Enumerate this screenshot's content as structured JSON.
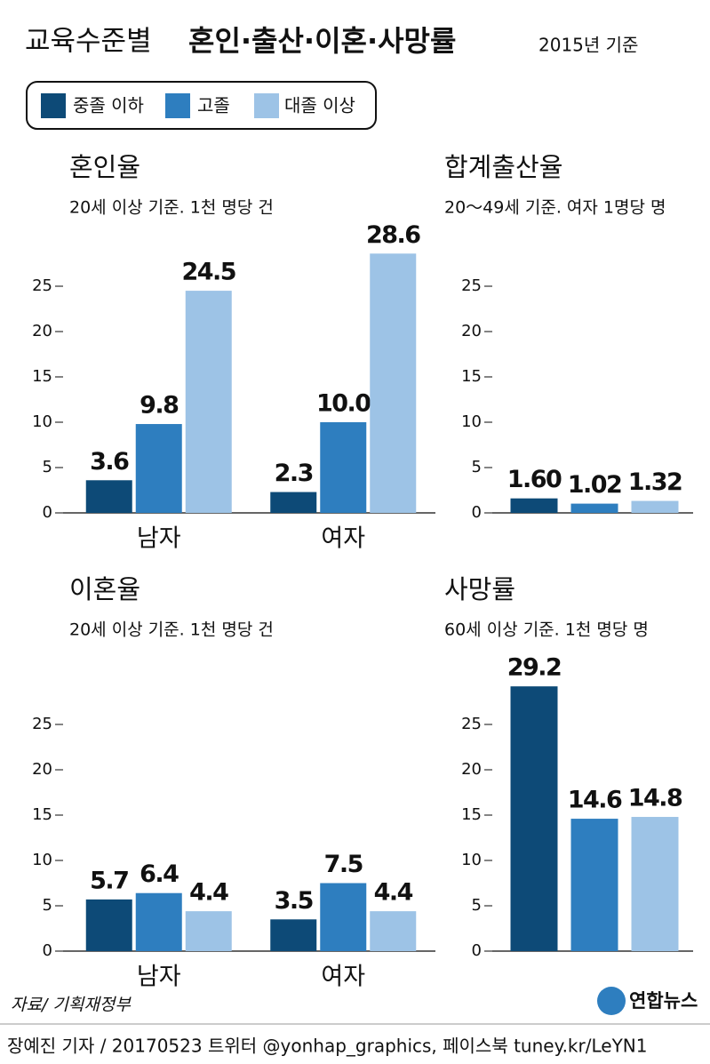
{
  "header": {
    "title_light": "교육수준별",
    "title_bold": "혼인·출산·이혼·사망률",
    "basis": "2015년 기준"
  },
  "chart_data": [
    {
      "type": "bar",
      "title": "혼인율",
      "subtitle": "20세 이상 기준. 1천 명당 건",
      "categories": [
        "남자",
        "여자"
      ],
      "series": [
        {
          "name": "중졸 이하",
          "color": "#0d4a77",
          "values": [
            3.6,
            2.3
          ]
        },
        {
          "name": "고졸",
          "color": "#2e7ebf",
          "values": [
            9.8,
            10.0
          ],
          "value_labels": [
            "9.8",
            "10.0"
          ]
        },
        {
          "name": "대졸 이상",
          "color": "#9dc3e6",
          "values": [
            24.5,
            28.6
          ]
        }
      ],
      "ylim": [
        0,
        30
      ],
      "yticks": [
        0,
        5,
        10,
        15,
        20,
        25
      ]
    },
    {
      "type": "bar",
      "title": "합계출산율",
      "subtitle": "20～49세 기준. 여자 1명당 명",
      "categories": [
        null
      ],
      "series": [
        {
          "name": "중졸 이하",
          "color": "#0d4a77",
          "values": [
            1.6
          ],
          "value_labels": [
            "1.60"
          ]
        },
        {
          "name": "고졸",
          "color": "#2e7ebf",
          "values": [
            1.02
          ]
        },
        {
          "name": "대졸 이상",
          "color": "#9dc3e6",
          "values": [
            1.32
          ]
        }
      ],
      "ylim": [
        0,
        30
      ],
      "yticks": [
        0,
        5,
        10,
        15,
        20,
        25
      ]
    },
    {
      "type": "bar",
      "title": "이혼율",
      "subtitle": "20세 이상 기준. 1천 명당 건",
      "categories": [
        "남자",
        "여자"
      ],
      "series": [
        {
          "name": "중졸 이하",
          "color": "#0d4a77",
          "values": [
            5.7,
            3.5
          ]
        },
        {
          "name": "고졸",
          "color": "#2e7ebf",
          "values": [
            6.4,
            7.5
          ]
        },
        {
          "name": "대졸 이상",
          "color": "#9dc3e6",
          "values": [
            4.4,
            4.4
          ]
        }
      ],
      "ylim": [
        0,
        30
      ],
      "yticks": [
        0,
        5,
        10,
        15,
        20,
        25
      ]
    },
    {
      "type": "bar",
      "title": "사망률",
      "subtitle": "60세 이상 기준. 1천 명당 명",
      "categories": [
        null
      ],
      "series": [
        {
          "name": "중졸 이하",
          "color": "#0d4a77",
          "values": [
            29.2
          ]
        },
        {
          "name": "고졸",
          "color": "#2e7ebf",
          "values": [
            14.6
          ]
        },
        {
          "name": "대졸 이상",
          "color": "#9dc3e6",
          "values": [
            14.8
          ]
        }
      ],
      "ylim": [
        0,
        30
      ],
      "yticks": [
        0,
        5,
        10,
        15,
        20,
        25
      ]
    }
  ],
  "source": "자료/ 기획재정부",
  "logo": "연합뉴스",
  "footer": "장예진 기자 / 20170523 트위터 @yonhap_graphics, 페이스북 tuney.kr/LeYN1"
}
